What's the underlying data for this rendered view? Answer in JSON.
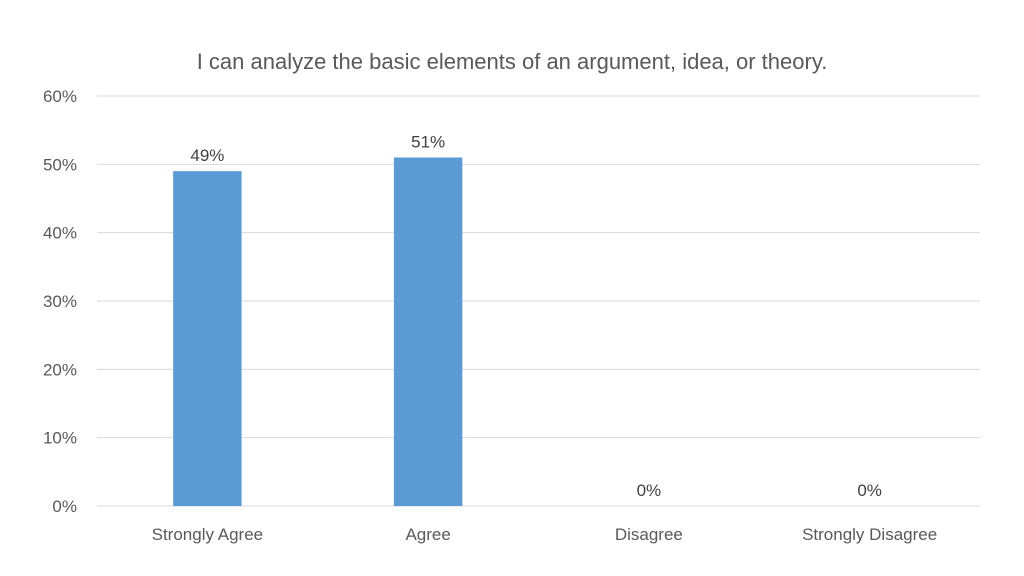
{
  "chart_data": {
    "type": "bar",
    "title": "I can analyze the basic elements of an argument, idea, or theory.",
    "categories": [
      "Strongly Agree",
      "Agree",
      "Disagree",
      "Strongly Disagree"
    ],
    "values": [
      49,
      51,
      0,
      0
    ],
    "data_labels": [
      "49%",
      "51%",
      "0%",
      "0%"
    ],
    "ylim": [
      0,
      60
    ],
    "yticks": [
      0,
      10,
      20,
      30,
      40,
      50,
      60
    ],
    "ytick_labels": [
      "0%",
      "10%",
      "20%",
      "30%",
      "40%",
      "50%",
      "60%"
    ],
    "xlabel": "",
    "ylabel": "",
    "grid": true,
    "legend": "none",
    "bar_color": "#5b9bd5"
  }
}
